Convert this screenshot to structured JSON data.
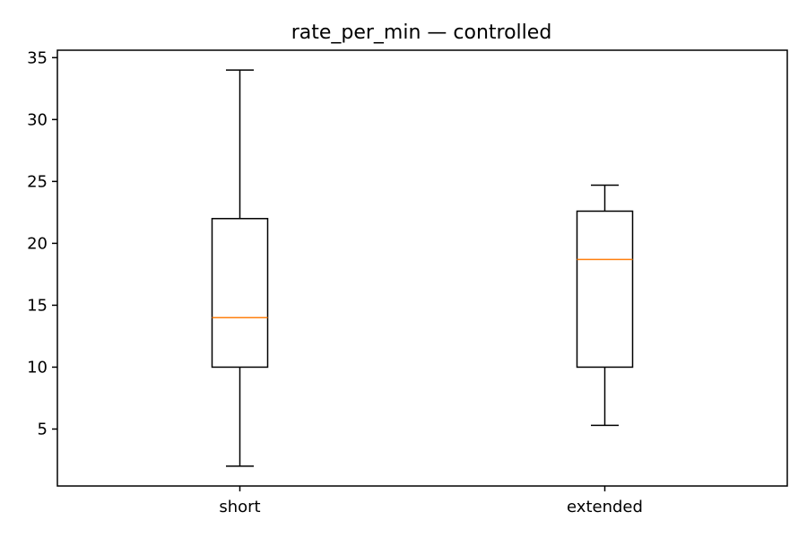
{
  "chart_data": {
    "type": "box",
    "title": "rate_per_min — controlled",
    "xlabel": "",
    "ylabel": "",
    "categories": [
      "short",
      "extended"
    ],
    "boxes": [
      {
        "category": "short",
        "whisker_low": 2.0,
        "q1": 10.0,
        "median": 14.0,
        "q3": 22.0,
        "whisker_high": 34.0
      },
      {
        "category": "extended",
        "whisker_low": 5.3,
        "q1": 10.0,
        "median": 18.7,
        "q3": 22.6,
        "whisker_high": 24.7
      }
    ],
    "ylim": [
      0.4,
      35.6
    ],
    "yticks": [
      5,
      10,
      15,
      20,
      25,
      30,
      35
    ],
    "grid": false,
    "legend": "none",
    "colors": {
      "box": "#000000",
      "median": "#ff7f0e",
      "axes": "#000000",
      "background": "#ffffff"
    }
  }
}
